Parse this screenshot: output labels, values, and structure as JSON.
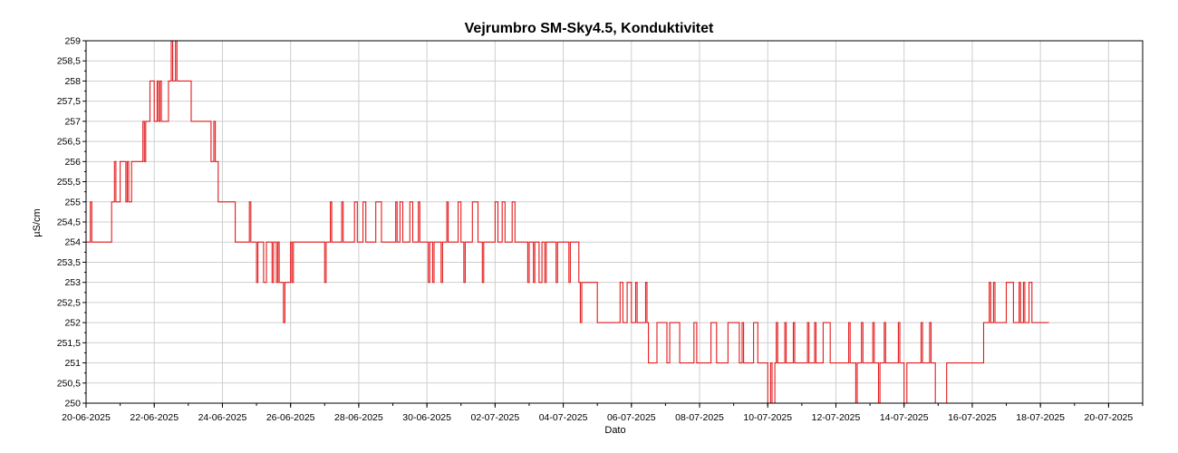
{
  "chart_data": {
    "type": "line",
    "title": "Vejrumbro SM-Sky4.5, Konduktivitet",
    "xlabel": "Dato",
    "ylabel": "µS/cm",
    "xlim": [
      "2025-06-20",
      "2025-07-21"
    ],
    "ylim": [
      250,
      259
    ],
    "x_tick_labels": [
      "20-06-2025",
      "22-06-2025",
      "24-06-2025",
      "26-06-2025",
      "28-06-2025",
      "30-06-2025",
      "02-07-2025",
      "04-07-2025",
      "06-07-2025",
      "08-07-2025",
      "10-07-2025",
      "12-07-2025",
      "14-07-2025",
      "16-07-2025",
      "18-07-2025",
      "20-07-2025"
    ],
    "y_tick_labels": [
      "250",
      "250,5",
      "251",
      "251,5",
      "252",
      "252,5",
      "253",
      "253,5",
      "254",
      "254,5",
      "255",
      "255,5",
      "256",
      "256,5",
      "257",
      "257,5",
      "258",
      "258,5",
      "259"
    ],
    "grid": true,
    "legend": "none",
    "series": [
      {
        "color": "#e31a1c",
        "points": [
          [
            "2025-06-20 00:00",
            254
          ],
          [
            "2025-06-20 03:00",
            255
          ],
          [
            "2025-06-20 04:00",
            254
          ],
          [
            "2025-06-20 18:00",
            255
          ],
          [
            "2025-06-20 20:00",
            256
          ],
          [
            "2025-06-20 21:00",
            255
          ],
          [
            "2025-06-21 00:00",
            256
          ],
          [
            "2025-06-21 04:00",
            255
          ],
          [
            "2025-06-21 05:00",
            256
          ],
          [
            "2025-06-21 06:00",
            255
          ],
          [
            "2025-06-21 08:00",
            256
          ],
          [
            "2025-06-21 16:00",
            257
          ],
          [
            "2025-06-21 17:00",
            256
          ],
          [
            "2025-06-21 18:00",
            257
          ],
          [
            "2025-06-21 21:00",
            258
          ],
          [
            "2025-06-22 00:00",
            257
          ],
          [
            "2025-06-22 02:00",
            258
          ],
          [
            "2025-06-22 03:00",
            257
          ],
          [
            "2025-06-22 04:00",
            258
          ],
          [
            "2025-06-22 05:00",
            257
          ],
          [
            "2025-06-22 10:00",
            258
          ],
          [
            "2025-06-22 12:00",
            259
          ],
          [
            "2025-06-22 13:00",
            258
          ],
          [
            "2025-06-22 15:00",
            259
          ],
          [
            "2025-06-22 16:00",
            258
          ],
          [
            "2025-06-23 02:00",
            257
          ],
          [
            "2025-06-23 16:00",
            256
          ],
          [
            "2025-06-23 18:00",
            257
          ],
          [
            "2025-06-23 19:00",
            256
          ],
          [
            "2025-06-23 21:00",
            255
          ],
          [
            "2025-06-24 09:00",
            254
          ],
          [
            "2025-06-24 19:00",
            255
          ],
          [
            "2025-06-24 20:00",
            254
          ],
          [
            "2025-06-25 00:00",
            253
          ],
          [
            "2025-06-25 01:00",
            254
          ],
          [
            "2025-06-25 05:00",
            253
          ],
          [
            "2025-06-25 07:00",
            254
          ],
          [
            "2025-06-25 11:00",
            253
          ],
          [
            "2025-06-25 12:00",
            254
          ],
          [
            "2025-06-25 14:00",
            253
          ],
          [
            "2025-06-25 15:00",
            254
          ],
          [
            "2025-06-25 16:00",
            253
          ],
          [
            "2025-06-25 19:00",
            252
          ],
          [
            "2025-06-25 20:00",
            253
          ],
          [
            "2025-06-26 00:00",
            254
          ],
          [
            "2025-06-26 01:00",
            253
          ],
          [
            "2025-06-26 02:00",
            254
          ],
          [
            "2025-06-27 00:00",
            253
          ],
          [
            "2025-06-27 01:00",
            254
          ],
          [
            "2025-06-27 04:00",
            255
          ],
          [
            "2025-06-27 05:00",
            254
          ],
          [
            "2025-06-27 12:00",
            255
          ],
          [
            "2025-06-27 13:00",
            254
          ],
          [
            "2025-06-27 21:00",
            255
          ],
          [
            "2025-06-27 23:00",
            254
          ],
          [
            "2025-06-28 03:00",
            255
          ],
          [
            "2025-06-28 05:00",
            254
          ],
          [
            "2025-06-28 12:00",
            255
          ],
          [
            "2025-06-28 16:00",
            254
          ],
          [
            "2025-06-29 02:00",
            255
          ],
          [
            "2025-06-29 03:00",
            254
          ],
          [
            "2025-06-29 05:00",
            255
          ],
          [
            "2025-06-29 07:00",
            254
          ],
          [
            "2025-06-29 12:00",
            255
          ],
          [
            "2025-06-29 14:00",
            254
          ],
          [
            "2025-06-29 18:00",
            255
          ],
          [
            "2025-06-29 19:00",
            254
          ],
          [
            "2025-06-30 01:00",
            253
          ],
          [
            "2025-06-30 02:00",
            254
          ],
          [
            "2025-06-30 04:00",
            253
          ],
          [
            "2025-06-30 05:00",
            254
          ],
          [
            "2025-06-30 10:00",
            253
          ],
          [
            "2025-06-30 11:00",
            254
          ],
          [
            "2025-06-30 14:00",
            255
          ],
          [
            "2025-06-30 15:00",
            254
          ],
          [
            "2025-06-30 22:00",
            255
          ],
          [
            "2025-07-01 00:00",
            254
          ],
          [
            "2025-07-01 02:00",
            253
          ],
          [
            "2025-07-01 03:00",
            254
          ],
          [
            "2025-07-01 08:00",
            255
          ],
          [
            "2025-07-01 12:00",
            254
          ],
          [
            "2025-07-01 15:00",
            253
          ],
          [
            "2025-07-01 16:00",
            254
          ],
          [
            "2025-07-02 00:00",
            255
          ],
          [
            "2025-07-02 02:00",
            254
          ],
          [
            "2025-07-02 05:00",
            255
          ],
          [
            "2025-07-02 07:00",
            254
          ],
          [
            "2025-07-02 12:00",
            255
          ],
          [
            "2025-07-02 14:00",
            254
          ],
          [
            "2025-07-02 23:00",
            253
          ],
          [
            "2025-07-03 00:00",
            254
          ],
          [
            "2025-07-03 03:00",
            253
          ],
          [
            "2025-07-03 04:00",
            254
          ],
          [
            "2025-07-03 07:00",
            253
          ],
          [
            "2025-07-03 09:00",
            254
          ],
          [
            "2025-07-03 11:00",
            253
          ],
          [
            "2025-07-03 12:00",
            254
          ],
          [
            "2025-07-03 19:00",
            253
          ],
          [
            "2025-07-03 20:00",
            254
          ],
          [
            "2025-07-04 04:00",
            253
          ],
          [
            "2025-07-04 05:00",
            254
          ],
          [
            "2025-07-04 11:00",
            253
          ],
          [
            "2025-07-04 12:00",
            252
          ],
          [
            "2025-07-04 13:00",
            253
          ],
          [
            "2025-07-05 00:00",
            252
          ],
          [
            "2025-07-05 16:00",
            253
          ],
          [
            "2025-07-05 18:00",
            252
          ],
          [
            "2025-07-05 21:00",
            253
          ],
          [
            "2025-07-06 00:00",
            252
          ],
          [
            "2025-07-06 03:00",
            253
          ],
          [
            "2025-07-06 04:00",
            252
          ],
          [
            "2025-07-06 10:00",
            253
          ],
          [
            "2025-07-06 11:00",
            252
          ],
          [
            "2025-07-06 12:00",
            251
          ],
          [
            "2025-07-06 18:00",
            252
          ],
          [
            "2025-07-07 01:00",
            251
          ],
          [
            "2025-07-07 03:00",
            252
          ],
          [
            "2025-07-07 10:00",
            251
          ],
          [
            "2025-07-07 20:00",
            252
          ],
          [
            "2025-07-07 22:00",
            251
          ],
          [
            "2025-07-08 08:00",
            252
          ],
          [
            "2025-07-08 12:00",
            251
          ],
          [
            "2025-07-08 20:00",
            252
          ],
          [
            "2025-07-09 04:00",
            251
          ],
          [
            "2025-07-09 06:00",
            252
          ],
          [
            "2025-07-09 07:00",
            251
          ],
          [
            "2025-07-09 14:00",
            252
          ],
          [
            "2025-07-09 17:00",
            251
          ],
          [
            "2025-07-10 00:00",
            250
          ],
          [
            "2025-07-10 02:00",
            251
          ],
          [
            "2025-07-10 03:00",
            250
          ],
          [
            "2025-07-10 05:00",
            251
          ],
          [
            "2025-07-10 06:00",
            252
          ],
          [
            "2025-07-10 07:00",
            251
          ],
          [
            "2025-07-10 12:00",
            252
          ],
          [
            "2025-07-10 13:00",
            251
          ],
          [
            "2025-07-10 18:00",
            252
          ],
          [
            "2025-07-10 19:00",
            251
          ],
          [
            "2025-07-11 04:00",
            252
          ],
          [
            "2025-07-11 05:00",
            251
          ],
          [
            "2025-07-11 09:00",
            252
          ],
          [
            "2025-07-11 10:00",
            251
          ],
          [
            "2025-07-11 15:00",
            252
          ],
          [
            "2025-07-11 20:00",
            251
          ],
          [
            "2025-07-12 09:00",
            252
          ],
          [
            "2025-07-12 10:00",
            251
          ],
          [
            "2025-07-12 14:00",
            250
          ],
          [
            "2025-07-12 15:00",
            251
          ],
          [
            "2025-07-12 18:00",
            252
          ],
          [
            "2025-07-12 19:00",
            251
          ],
          [
            "2025-07-13 02:00",
            252
          ],
          [
            "2025-07-13 03:00",
            251
          ],
          [
            "2025-07-13 06:00",
            250
          ],
          [
            "2025-07-13 07:00",
            251
          ],
          [
            "2025-07-13 10:00",
            252
          ],
          [
            "2025-07-13 11:00",
            251
          ],
          [
            "2025-07-13 20:00",
            252
          ],
          [
            "2025-07-13 21:00",
            251
          ],
          [
            "2025-07-14 00:00",
            250
          ],
          [
            "2025-07-14 02:00",
            251
          ],
          [
            "2025-07-14 12:00",
            252
          ],
          [
            "2025-07-14 13:00",
            251
          ],
          [
            "2025-07-14 18:00",
            252
          ],
          [
            "2025-07-14 19:00",
            251
          ],
          [
            "2025-07-14 22:00",
            250
          ],
          [
            "2025-07-15 06:00",
            251
          ],
          [
            "2025-07-16 08:00",
            252
          ],
          [
            "2025-07-16 12:00",
            253
          ],
          [
            "2025-07-16 13:00",
            252
          ],
          [
            "2025-07-16 15:00",
            253
          ],
          [
            "2025-07-16 16:00",
            252
          ],
          [
            "2025-07-17 00:00",
            253
          ],
          [
            "2025-07-17 05:00",
            252
          ],
          [
            "2025-07-17 09:00",
            253
          ],
          [
            "2025-07-17 10:00",
            252
          ],
          [
            "2025-07-17 12:00",
            253
          ],
          [
            "2025-07-17 13:00",
            252
          ],
          [
            "2025-07-17 16:00",
            253
          ],
          [
            "2025-07-17 18:00",
            252
          ],
          [
            "2025-07-18 06:00",
            252
          ]
        ]
      }
    ]
  }
}
